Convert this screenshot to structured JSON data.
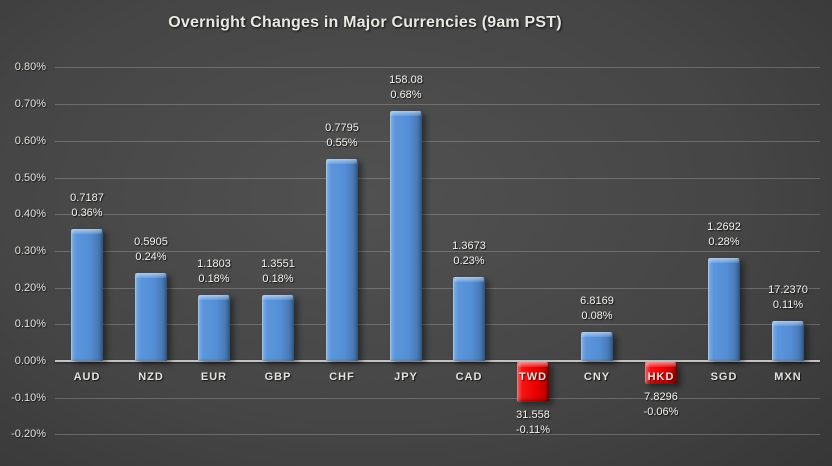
{
  "title": "Overnight Changes in Major Currencies (9am PST)",
  "chart_data": {
    "type": "bar",
    "title": "Overnight Changes in Major Currencies (9am PST)",
    "categories": [
      "AUD",
      "NZD",
      "EUR",
      "GBP",
      "CHF",
      "JPY",
      "CAD",
      "TWD",
      "CNY",
      "HKD",
      "SGD",
      "MXN"
    ],
    "series": [
      {
        "name": "Exchange rate (label line 1)",
        "labels": [
          "0.7187",
          "0.5905",
          "1.1803",
          "1.3551",
          "0.7795",
          "158.08",
          "1.3673",
          "31.558",
          "6.8169",
          "7.8296",
          "1.2692",
          "17.2370"
        ]
      },
      {
        "name": "Overnight change % (bar height, label line 2)",
        "values": [
          0.36,
          0.24,
          0.18,
          0.18,
          0.55,
          0.68,
          0.23,
          -0.11,
          0.08,
          -0.06,
          0.28,
          0.11
        ],
        "labels": [
          "0.36%",
          "0.24%",
          "0.18%",
          "0.18%",
          "0.55%",
          "0.68%",
          "0.23%",
          "-0.11%",
          "0.08%",
          "-0.06%",
          "0.28%",
          "0.11%"
        ]
      }
    ],
    "xlabel": "",
    "ylabel": "",
    "ylim_pct": [
      -0.2,
      0.8
    ],
    "ytick_labels": [
      "0.80%",
      "0.70%",
      "0.60%",
      "0.50%",
      "0.40%",
      "0.30%",
      "0.20%",
      "0.10%",
      "0.00%",
      "-0.10%",
      "-0.20%"
    ],
    "grid": true,
    "legend": false,
    "colors": {
      "positive_bar": "#5B96DD",
      "positive_bar_gradient": [
        "#7FAFE2",
        "#5B96DD",
        "#548DD4",
        "#416FA6"
      ],
      "negative_bar": "#EE0404",
      "negative_bar_gradient": [
        "#FF6A6A",
        "#F51414",
        "#E90000",
        "#B30000"
      ],
      "background_center": "#515151",
      "background_edge": "#1F1F1F",
      "gridline": "#6E6E6E",
      "axis_line": "#C2C2C2",
      "text": "#E9E9E3"
    }
  }
}
